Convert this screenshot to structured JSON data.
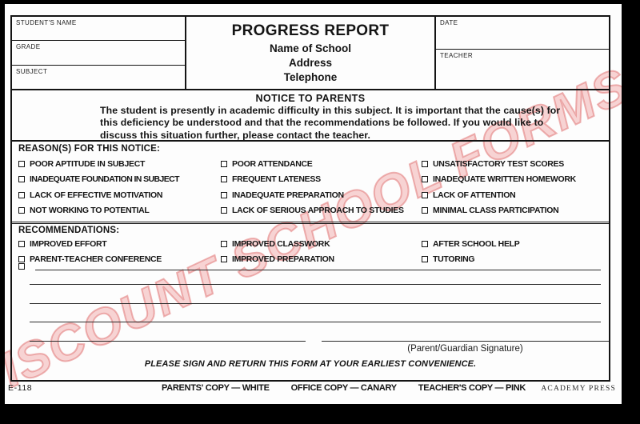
{
  "header": {
    "student_name_label": "STUDENT'S NAME",
    "grade_label": "GRADE",
    "subject_label": "SUBJECT",
    "title": "PROGRESS REPORT",
    "school_line": "Name of School",
    "address_line": "Address",
    "telephone_line": "Telephone",
    "date_label": "DATE",
    "teacher_label": "TEACHER"
  },
  "notice": {
    "heading": "NOTICE TO PARENTS",
    "body": "The student is presently in academic difficulty in this subject. It is important that the cause(s) for this deficiency be understood and that the recommendations be followed. If you would like to discuss this situation further, please contact the teacher."
  },
  "reasons": {
    "heading": "REASON(S) FOR THIS NOTICE:",
    "col1": [
      "POOR APTITUDE IN SUBJECT",
      "INADEQUATE FOUNDATION IN SUBJECT",
      "LACK OF EFFECTIVE MOTIVATION",
      "NOT WORKING TO POTENTIAL"
    ],
    "col2": [
      "POOR ATTENDANCE",
      "FREQUENT  LATENESS",
      "INADEQUATE PREPARATION",
      "LACK OF SERIOUS APPROACH TO STUDIES"
    ],
    "col3": [
      "UNSATISFACTORY TEST SCORES",
      "INADEQUATE WRITTEN HOMEWORK",
      "LACK OF ATTENTION",
      "MINIMAL CLASS PARTICIPATION"
    ]
  },
  "recommendations": {
    "heading": "RECOMMENDATIONS:",
    "col1": [
      "IMPROVED EFFORT",
      "PARENT-TEACHER CONFERENCE"
    ],
    "col2": [
      "IMPROVED CLASSWORK",
      "IMPROVED PREPARATION"
    ],
    "col3": [
      "AFTER SCHOOL HELP",
      "TUTORING"
    ]
  },
  "signature": {
    "caption": "(Parent/Guardian Signature)",
    "instruction": "PLEASE SIGN AND RETURN THIS FORM AT YOUR EARLIEST CONVENIENCE."
  },
  "footer": {
    "form_number": "E-118",
    "copies": [
      "PARENTS' COPY — WHITE",
      "OFFICE COPY — CANARY",
      "TEACHER'S COPY — PINK"
    ],
    "printer": "ACADEMY PRESS"
  },
  "watermark": {
    "text": "DISCOUNT SCHOOL FORMS",
    "color": "#e28080"
  }
}
